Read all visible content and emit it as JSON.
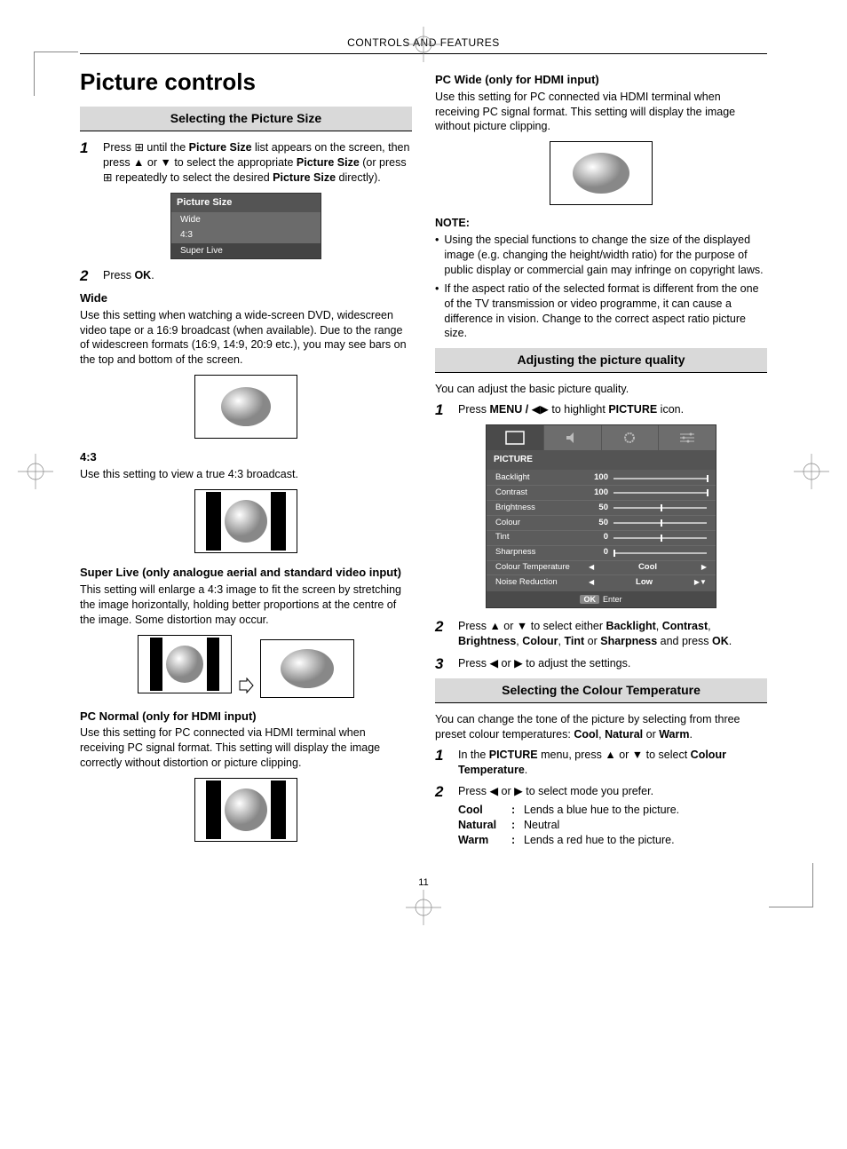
{
  "header": "CONTROLS AND FEATURES",
  "page_number": "11",
  "left": {
    "title": "Picture controls",
    "sec1": {
      "bar": "Selecting the Picture Size",
      "step1_a": "Press ",
      "step1_b": " until the ",
      "step1_c": "Picture Size",
      "step1_d": " list appears on the screen, then press ",
      "step1_e": " or ",
      "step1_f": " to select the appropriate ",
      "step1_g": "Picture Size",
      "step1_h": " (or press ",
      "step1_i": " repeatedly to select the desired ",
      "step1_j": "Picture Size",
      "step1_k": " directly).",
      "menu_title": "Picture Size",
      "menu_items": [
        "Wide",
        "4:3",
        "Super Live"
      ],
      "step2_a": "Press ",
      "step2_b": "OK",
      "step2_c": "."
    },
    "wide": {
      "h": "Wide",
      "p": "Use this setting when watching a wide-screen DVD, widescreen video tape or a 16:9 broadcast (when available). Due to the range of widescreen formats (16:9, 14:9, 20:9 etc.), you may see bars on the top and bottom of the screen."
    },
    "ar43": {
      "h": "4:3",
      "p": "Use this setting to view a true 4:3 broadcast."
    },
    "superlive": {
      "h": "Super Live (only analogue aerial and standard video input)",
      "p": "This setting will enlarge a 4:3 image to fit the screen by stretching the image horizontally, holding better proportions at the centre of the image. Some distortion may occur."
    },
    "pcnormal": {
      "h": "PC Normal (only for HDMI input)",
      "p": "Use this setting for PC connected via HDMI terminal when receiving PC signal format. This setting will display the image correctly without distortion or picture clipping."
    }
  },
  "right": {
    "pcwide": {
      "h": "PC Wide (only for HDMI input)",
      "p": "Use this setting for PC connected via HDMI terminal when receiving PC signal format. This setting will display the image without picture clipping."
    },
    "note_h": "NOTE:",
    "notes": [
      "Using the special functions to change the size of the displayed image (e.g. changing the height/width ratio) for the purpose of public display or commercial gain may infringe on copyright laws.",
      "If the aspect ratio of the selected format is different from the one of the TV transmission or video programme, it can cause a difference in vision. Change to the correct aspect ratio picture size."
    ],
    "adjust": {
      "bar": "Adjusting the picture quality",
      "intro": "You can adjust the basic picture quality.",
      "step1_a": "Press ",
      "step1_b": "MENU / ",
      "step1_c": " to highlight ",
      "step1_d": "PICTURE",
      "step1_e": " icon.",
      "osd_title": "PICTURE",
      "osd_rows": [
        {
          "label": "Backlight",
          "value": "100",
          "pos": 100
        },
        {
          "label": "Contrast",
          "value": "100",
          "pos": 100
        },
        {
          "label": "Brightness",
          "value": "50",
          "pos": 50
        },
        {
          "label": "Colour",
          "value": "50",
          "pos": 50
        },
        {
          "label": "Tint",
          "value": "0",
          "pos": 50
        },
        {
          "label": "Sharpness",
          "value": "0",
          "pos": 0
        }
      ],
      "osd_opts": [
        {
          "label": "Colour Temperature",
          "value": "Cool"
        },
        {
          "label": "Noise Reduction",
          "value": "Low"
        }
      ],
      "osd_foot_ok": "OK",
      "osd_foot_enter": "Enter",
      "step2_a": "Press ",
      "step2_b": " or ",
      "step2_c": " to select either ",
      "step2_d": "Backlight",
      "step2_e": "Contrast",
      "step2_f": "Brightness",
      "step2_g": "Colour",
      "step2_h": "Tint",
      "step2_i": "Sharpness",
      "step2_j": " and press ",
      "step2_k": "OK",
      "step2_l": ".",
      "step3_a": "Press ",
      "step3_b": " or ",
      "step3_c": " to adjust the settings."
    },
    "ct": {
      "bar": "Selecting the Colour Temperature",
      "intro_a": "You can change the tone of the picture by selecting from three preset colour temperatures: ",
      "intro_b": "Cool",
      "intro_c": ", ",
      "intro_d": "Natural",
      "intro_e": " or ",
      "intro_f": "Warm",
      "intro_g": ".",
      "step1_a": "In the ",
      "step1_b": "PICTURE",
      "step1_c": " menu, press ",
      "step1_d": " or ",
      "step1_e": " to select ",
      "step1_f": "Colour Temperature",
      "step1_g": ".",
      "step2_a": "Press ",
      "step2_b": " or ",
      "step2_c": " to select mode you prefer.",
      "rows": [
        {
          "k": "Cool",
          "v": "Lends a blue hue to the picture."
        },
        {
          "k": "Natural",
          "v": "Neutral"
        },
        {
          "k": "Warm",
          "v": "Lends a red hue to the picture."
        }
      ]
    }
  },
  "glyphs": {
    "tv_btn": "⊞",
    "up": "▲",
    "down": "▼",
    "left": "◀",
    "right": "▶",
    "lr": "◀▶"
  },
  "colors": {
    "bar_bg": "#d9d9d9",
    "osd_bg": "#5c5c5c"
  }
}
